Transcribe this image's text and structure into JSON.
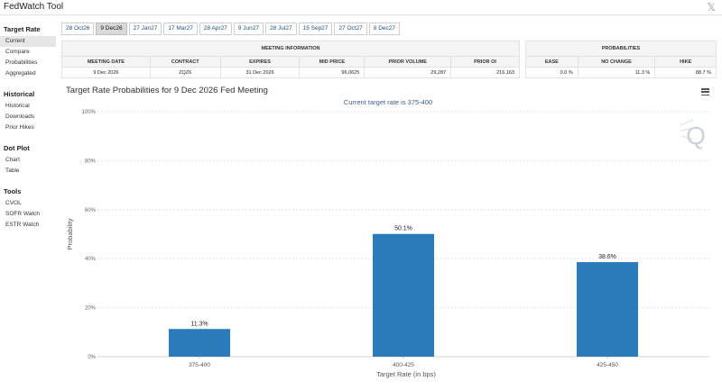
{
  "app": {
    "title": "FedWatch Tool",
    "close_glyph": "𝕏"
  },
  "sidebar": [
    {
      "heading": "Target Rate",
      "items": [
        {
          "label": "Current",
          "active": true
        },
        {
          "label": "Compare",
          "active": false
        },
        {
          "label": "Probabilities",
          "active": false
        },
        {
          "label": "Aggregated",
          "active": false
        }
      ]
    },
    {
      "heading": "Historical",
      "items": [
        {
          "label": "Historical",
          "active": false
        },
        {
          "label": "Downloads",
          "active": false
        },
        {
          "label": "Prior Hikes",
          "active": false
        }
      ]
    },
    {
      "heading": "Dot Plot",
      "items": [
        {
          "label": "Chart",
          "active": false
        },
        {
          "label": "Table",
          "active": false
        }
      ]
    },
    {
      "heading": "Tools",
      "items": [
        {
          "label": "CVOL",
          "active": false
        },
        {
          "label": "SOFR Watch",
          "active": false
        },
        {
          "label": "ESTR Watch",
          "active": false
        }
      ]
    }
  ],
  "tabs": [
    {
      "label": "28 Oct26",
      "active": false
    },
    {
      "label": "9 Dec26",
      "active": true
    },
    {
      "label": "27 Jan27",
      "active": false
    },
    {
      "label": "17 Mar27",
      "active": false
    },
    {
      "label": "28 Apr27",
      "active": false
    },
    {
      "label": "9 Jun27",
      "active": false
    },
    {
      "label": "28 Jul27",
      "active": false
    },
    {
      "label": "15 Sep27",
      "active": false
    },
    {
      "label": "27 Oct27",
      "active": false
    },
    {
      "label": "8 Dec27",
      "active": false
    }
  ],
  "meeting_info": {
    "title": "MEETING INFORMATION",
    "columns": [
      "MEETING DATE",
      "CONTRACT",
      "EXPIRES",
      "MID PRICE",
      "PRIOR VOLUME",
      "PRIOR OI"
    ],
    "row": [
      "9 Dec 2026",
      "ZQZ6",
      "31 Dec 2026",
      "96.0625",
      "29,287",
      "216,163"
    ]
  },
  "probabilities": {
    "title": "PROBABILITIES",
    "columns": [
      "EASE",
      "NO CHANGE",
      "HIKE"
    ],
    "row": [
      "0.0 %",
      "11.3 %",
      "88.7 %"
    ]
  },
  "chart": {
    "title": "Target Rate Probabilities for 9 Dec 2026 Fed Meeting",
    "subtitle": "Current target rate is 375-400",
    "logo_letter": "Q",
    "colors": {
      "bar": "#2b7bba",
      "subtitle": "#3f5e8a"
    }
  },
  "chart_data": {
    "type": "bar",
    "categories": [
      "375-400",
      "400-425",
      "425-450"
    ],
    "values": [
      11.3,
      50.1,
      38.6
    ],
    "data_labels": [
      "11.3%",
      "50.1%",
      "38.6%"
    ],
    "title": "Target Rate Probabilities for 9 Dec 2026 Fed Meeting",
    "subtitle": "Current target rate is 375-400",
    "xlabel": "Target Rate (in bps)",
    "ylabel": "Probability",
    "ylim": [
      0,
      100
    ],
    "yticks": [
      0,
      20,
      40,
      60,
      80,
      100
    ],
    "ytick_labels": [
      "0%",
      "20%",
      "40%",
      "60%",
      "80%",
      "100%"
    ],
    "grid": true,
    "legend": "none"
  }
}
